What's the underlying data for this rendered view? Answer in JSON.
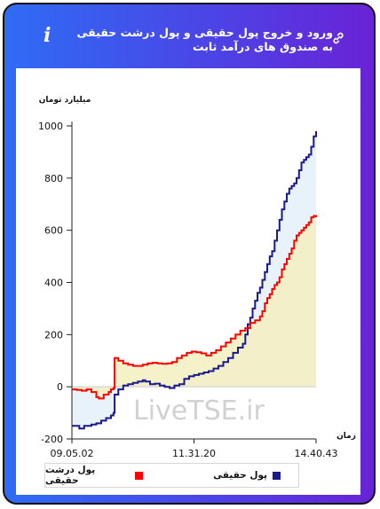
{
  "header": {
    "title": "ورود و خروج پول حقیقی و پول درشت حقیقی به صندوق های درآمد ثابت",
    "info_icon": "info-icon",
    "link_icon": "link-icon"
  },
  "watermark": "LiveTSE.ir",
  "legend": [
    {
      "label": "پول حقیقی",
      "color": "#1a1a8c"
    },
    {
      "label": "پول درشت حقیقی",
      "color": "#ff0000"
    }
  ],
  "chart_data": {
    "type": "line",
    "title": "ورود و خروج پول حقیقی و پول درشت حقیقی به صندوق های درآمد ثابت",
    "ylabel": "میلیارد تومان",
    "xlabel": "زمان",
    "ylim": [
      -200,
      1000
    ],
    "yticks": [
      -200,
      0,
      200,
      400,
      600,
      800,
      1000
    ],
    "xlim": [
      0,
      100
    ],
    "xtick_labels": [
      {
        "x": 0,
        "label": "09.05.02"
      },
      {
        "x": 50,
        "label": "11.31.20"
      },
      {
        "x": 100,
        "label": "14.40.43"
      }
    ],
    "grid": false,
    "series": [
      {
        "name": "پول حقیقی",
        "color": "#1a1a8c",
        "fill": "#e6f1f9",
        "points": [
          [
            0,
            -150
          ],
          [
            3,
            -160
          ],
          [
            5,
            -150
          ],
          [
            8,
            -145
          ],
          [
            10,
            -140
          ],
          [
            12,
            -130
          ],
          [
            14,
            -120
          ],
          [
            16,
            -110
          ],
          [
            17,
            -100
          ],
          [
            17.5,
            -30
          ],
          [
            19,
            -10
          ],
          [
            21,
            5
          ],
          [
            23,
            10
          ],
          [
            25,
            15
          ],
          [
            27,
            20
          ],
          [
            29,
            25
          ],
          [
            30,
            20
          ],
          [
            32,
            10
          ],
          [
            34,
            12
          ],
          [
            36,
            5
          ],
          [
            38,
            0
          ],
          [
            40,
            -5
          ],
          [
            42,
            5
          ],
          [
            44,
            10
          ],
          [
            46,
            30
          ],
          [
            48,
            40
          ],
          [
            50,
            45
          ],
          [
            52,
            50
          ],
          [
            54,
            55
          ],
          [
            56,
            60
          ],
          [
            58,
            70
          ],
          [
            60,
            80
          ],
          [
            62,
            95
          ],
          [
            64,
            110
          ],
          [
            66,
            130
          ],
          [
            68,
            150
          ],
          [
            70,
            165
          ],
          [
            71,
            200
          ],
          [
            72,
            240
          ],
          [
            73,
            265
          ],
          [
            74,
            300
          ],
          [
            75,
            330
          ],
          [
            76,
            360
          ],
          [
            77,
            380
          ],
          [
            78,
            410
          ],
          [
            79,
            440
          ],
          [
            80,
            470
          ],
          [
            81,
            500
          ],
          [
            82,
            520
          ],
          [
            83,
            560
          ],
          [
            84,
            600
          ],
          [
            85,
            640
          ],
          [
            86,
            680
          ],
          [
            87,
            710
          ],
          [
            88,
            740
          ],
          [
            89,
            760
          ],
          [
            90,
            770
          ],
          [
            91,
            780
          ],
          [
            92,
            800
          ],
          [
            93,
            830
          ],
          [
            94,
            860
          ],
          [
            95,
            870
          ],
          [
            96,
            880
          ],
          [
            97,
            890
          ],
          [
            98,
            920
          ],
          [
            99,
            960
          ],
          [
            100,
            980
          ]
        ]
      },
      {
        "name": "پول درشت حقیقی",
        "color": "#ff0000",
        "fill": "#f3eec0",
        "points": [
          [
            0,
            -10
          ],
          [
            2,
            -12
          ],
          [
            4,
            -15
          ],
          [
            6,
            -10
          ],
          [
            8,
            -20
          ],
          [
            10,
            -40
          ],
          [
            11,
            -45
          ],
          [
            13,
            -30
          ],
          [
            15,
            -20
          ],
          [
            16,
            -10
          ],
          [
            17,
            -5
          ],
          [
            17.5,
            110
          ],
          [
            19,
            100
          ],
          [
            21,
            90
          ],
          [
            23,
            85
          ],
          [
            25,
            80
          ],
          [
            27,
            80
          ],
          [
            29,
            85
          ],
          [
            31,
            90
          ],
          [
            33,
            92
          ],
          [
            35,
            90
          ],
          [
            37,
            88
          ],
          [
            39,
            90
          ],
          [
            41,
            95
          ],
          [
            43,
            110
          ],
          [
            45,
            120
          ],
          [
            47,
            130
          ],
          [
            49,
            135
          ],
          [
            51,
            132
          ],
          [
            53,
            128
          ],
          [
            55,
            120
          ],
          [
            57,
            130
          ],
          [
            59,
            140
          ],
          [
            61,
            155
          ],
          [
            63,
            170
          ],
          [
            65,
            185
          ],
          [
            67,
            200
          ],
          [
            69,
            215
          ],
          [
            71,
            225
          ],
          [
            73,
            245
          ],
          [
            75,
            255
          ],
          [
            77,
            270
          ],
          [
            78,
            290
          ],
          [
            79,
            320
          ],
          [
            80,
            340
          ],
          [
            81,
            355
          ],
          [
            82,
            375
          ],
          [
            83,
            390
          ],
          [
            84,
            400
          ],
          [
            85,
            420
          ],
          [
            86,
            450
          ],
          [
            87,
            470
          ],
          [
            88,
            490
          ],
          [
            89,
            510
          ],
          [
            90,
            530
          ],
          [
            91,
            560
          ],
          [
            92,
            580
          ],
          [
            93,
            590
          ],
          [
            94,
            600
          ],
          [
            95,
            610
          ],
          [
            96,
            620
          ],
          [
            97,
            630
          ],
          [
            98,
            650
          ],
          [
            99,
            655
          ],
          [
            100,
            650
          ]
        ]
      }
    ]
  }
}
